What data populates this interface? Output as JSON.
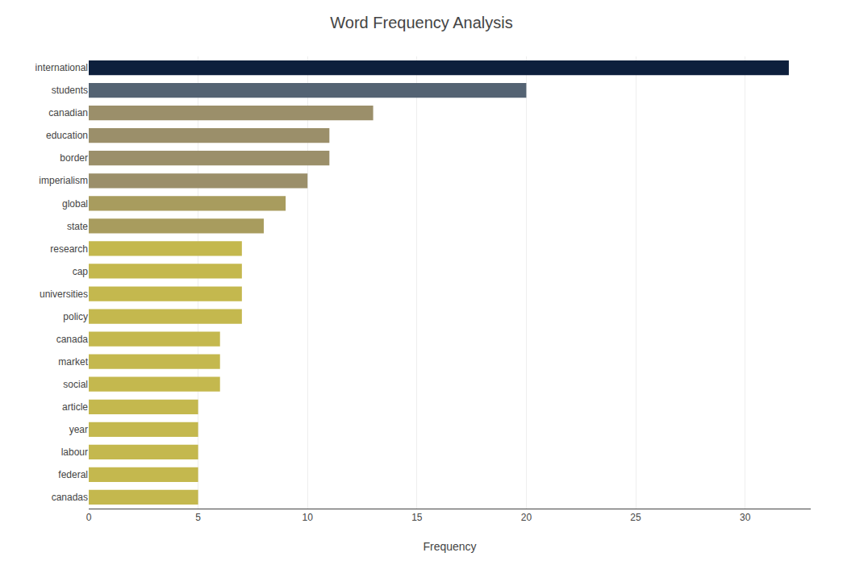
{
  "chart_data": {
    "type": "bar",
    "orientation": "horizontal",
    "title": "Word Frequency Analysis",
    "xlabel": "Frequency",
    "categories": [
      "international",
      "students",
      "canadian",
      "education",
      "border",
      "imperialism",
      "global",
      "state",
      "research",
      "cap",
      "universities",
      "policy",
      "canada",
      "market",
      "social",
      "article",
      "year",
      "labour",
      "federal",
      "canadas"
    ],
    "values": [
      32,
      20,
      13,
      11,
      11,
      10,
      9,
      8,
      7,
      7,
      7,
      7,
      6,
      6,
      6,
      5,
      5,
      5,
      5,
      5
    ],
    "colors": [
      "#0d1f3c",
      "#546373",
      "#9b8f6a",
      "#9b8f6a",
      "#9b8f6a",
      "#9b8f6a",
      "#a89c5e",
      "#a89c5e",
      "#c4b84e",
      "#c4b84e",
      "#c4b84e",
      "#c4b84e",
      "#c4b84e",
      "#c4b84e",
      "#c4b84e",
      "#c4b84e",
      "#c4b84e",
      "#c4b84e",
      "#c4b84e",
      "#c4b84e"
    ],
    "xlim": [
      0,
      33
    ],
    "xticks": [
      0,
      5,
      10,
      15,
      20,
      25,
      30
    ],
    "grid": true
  }
}
